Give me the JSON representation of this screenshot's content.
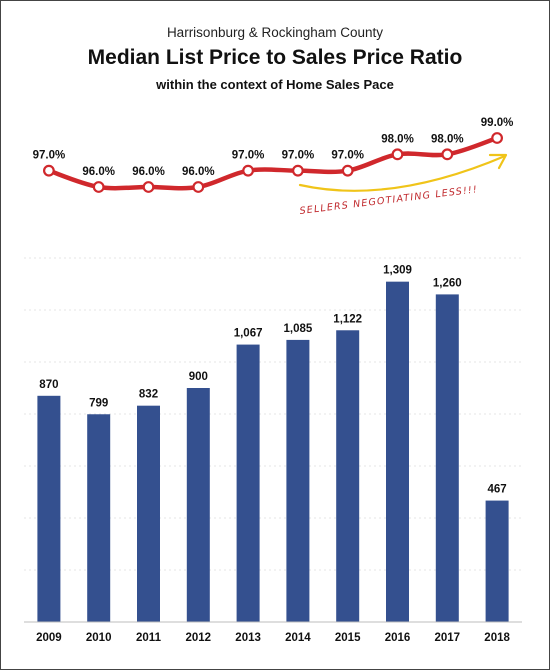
{
  "header": {
    "supertitle": "Harrisonburg & Rockingham County",
    "title": "Median List Price to Sales Price Ratio",
    "subtitle": "within the context of Home Sales Pace"
  },
  "annotation": {
    "text": "SELLERS NEGOTIATING LESS!!!",
    "color": "#f0c419"
  },
  "chart_data": {
    "type": "bar",
    "categories": [
      "2009",
      "2010",
      "2011",
      "2012",
      "2013",
      "2014",
      "2015",
      "2016",
      "2017",
      "2018"
    ],
    "grid": true,
    "bar_color": "#34508f",
    "line_color": "#d0282c",
    "series": [
      {
        "type": "bar",
        "values": [
          870,
          799,
          832,
          900,
          1067,
          1085,
          1122,
          1309,
          1260,
          467
        ],
        "labels": [
          "870",
          "799",
          "832",
          "900",
          "1,067",
          "1,085",
          "1,122",
          "1,309",
          "1,260",
          "467"
        ]
      },
      {
        "type": "line",
        "values": [
          97.0,
          96.0,
          96.0,
          96.0,
          97.0,
          97.0,
          97.0,
          98.0,
          98.0,
          99.0
        ],
        "labels": [
          "97.0%",
          "96.0%",
          "96.0%",
          "96.0%",
          "97.0%",
          "97.0%",
          "97.0%",
          "98.0%",
          "98.0%",
          "99.0%"
        ]
      }
    ]
  }
}
